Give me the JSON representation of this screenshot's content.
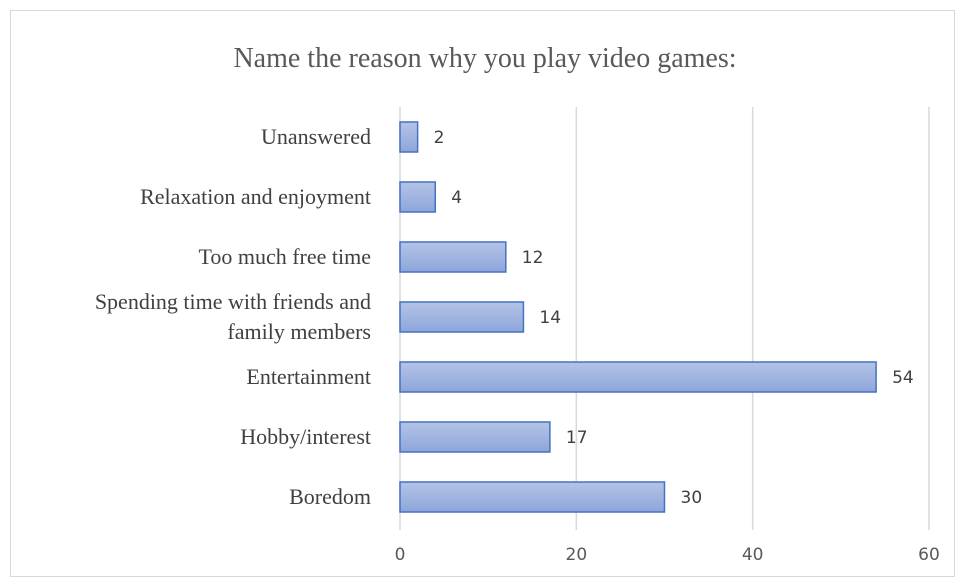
{
  "chart_data": {
    "type": "bar",
    "orientation": "horizontal",
    "title": "Name the reason why you play video games:",
    "categories": [
      [
        "Unanswered"
      ],
      [
        "Relaxation and enjoyment"
      ],
      [
        "Too much free time"
      ],
      [
        "Spending time with friends and",
        "family members"
      ],
      [
        "Entertainment"
      ],
      [
        "Hobby/interest"
      ],
      [
        "Boredom"
      ]
    ],
    "values": [
      2,
      4,
      12,
      14,
      54,
      17,
      30
    ],
    "data_labels": [
      "2",
      "4",
      "12",
      "14",
      "54",
      "17",
      "30"
    ],
    "xlim": [
      0,
      60
    ],
    "x_ticks": [
      0,
      20,
      40,
      60
    ],
    "x_tick_labels": [
      "0",
      "20",
      "40",
      "60"
    ],
    "grid": "vertical",
    "legend": "none",
    "colors": {
      "bar_fill_top": "#b4c4e6",
      "bar_fill_bottom": "#8ea5da",
      "bar_stroke": "#4472c4",
      "grid": "#d9d9d9"
    }
  }
}
